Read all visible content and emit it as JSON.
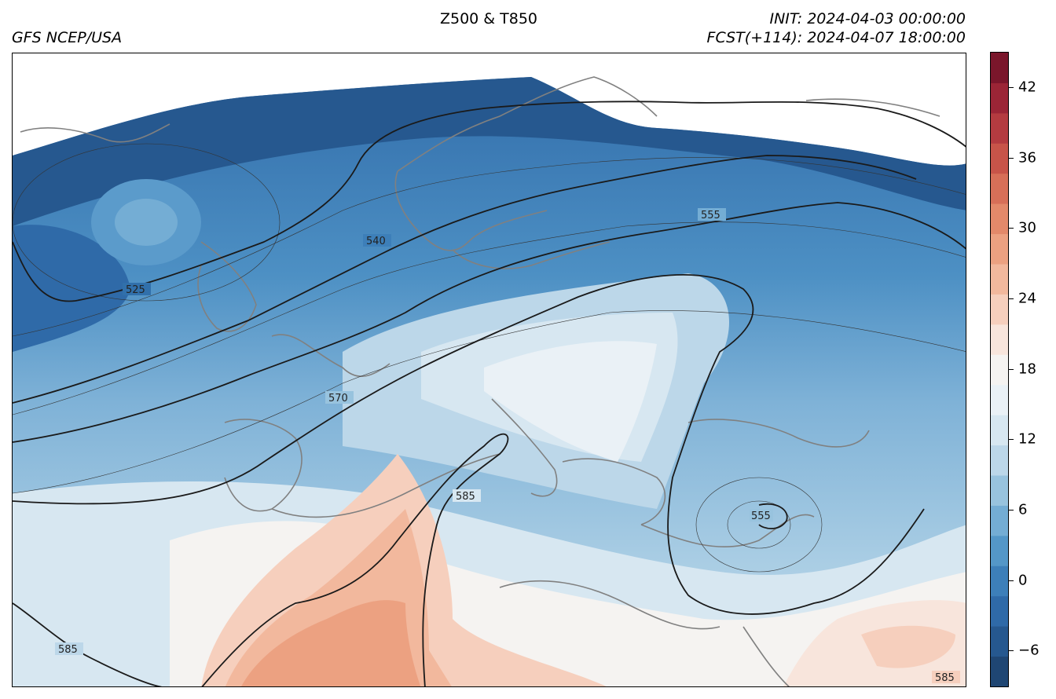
{
  "header": {
    "center_title": "Z500 & T850",
    "left_title": "GFS NCEP/USA",
    "init_line": "INIT: 2024-04-03 00:00:00",
    "fcst_line": "FCST(+114): 2024-04-07 18:00:00"
  },
  "colorbar": {
    "min": -9,
    "max": 45,
    "step": 3,
    "tick_labels": [
      "-6",
      "0",
      "6",
      "12",
      "18",
      "24",
      "30",
      "36",
      "42"
    ],
    "tick_values": [
      -6,
      0,
      6,
      12,
      18,
      24,
      30,
      36,
      42
    ],
    "colors": [
      "#1f4673",
      "#26588f",
      "#2f6aa8",
      "#3d7fb9",
      "#5497c8",
      "#74add4",
      "#98c3de",
      "#bcd7e9",
      "#d7e7f1",
      "#eaf1f6",
      "#f5f3f1",
      "#f8e5dc",
      "#f6cfbd",
      "#f2b89d",
      "#eca181",
      "#e3896a",
      "#d76f58",
      "#c85449",
      "#b43b40",
      "#9b2536",
      "#7a162b"
    ]
  },
  "contour_labels": {
    "l525": "525",
    "l540": "540",
    "l555a": "555",
    "l570": "570",
    "l585a": "585",
    "l555b": "555",
    "l585b": "585",
    "l585c": "585"
  }
}
